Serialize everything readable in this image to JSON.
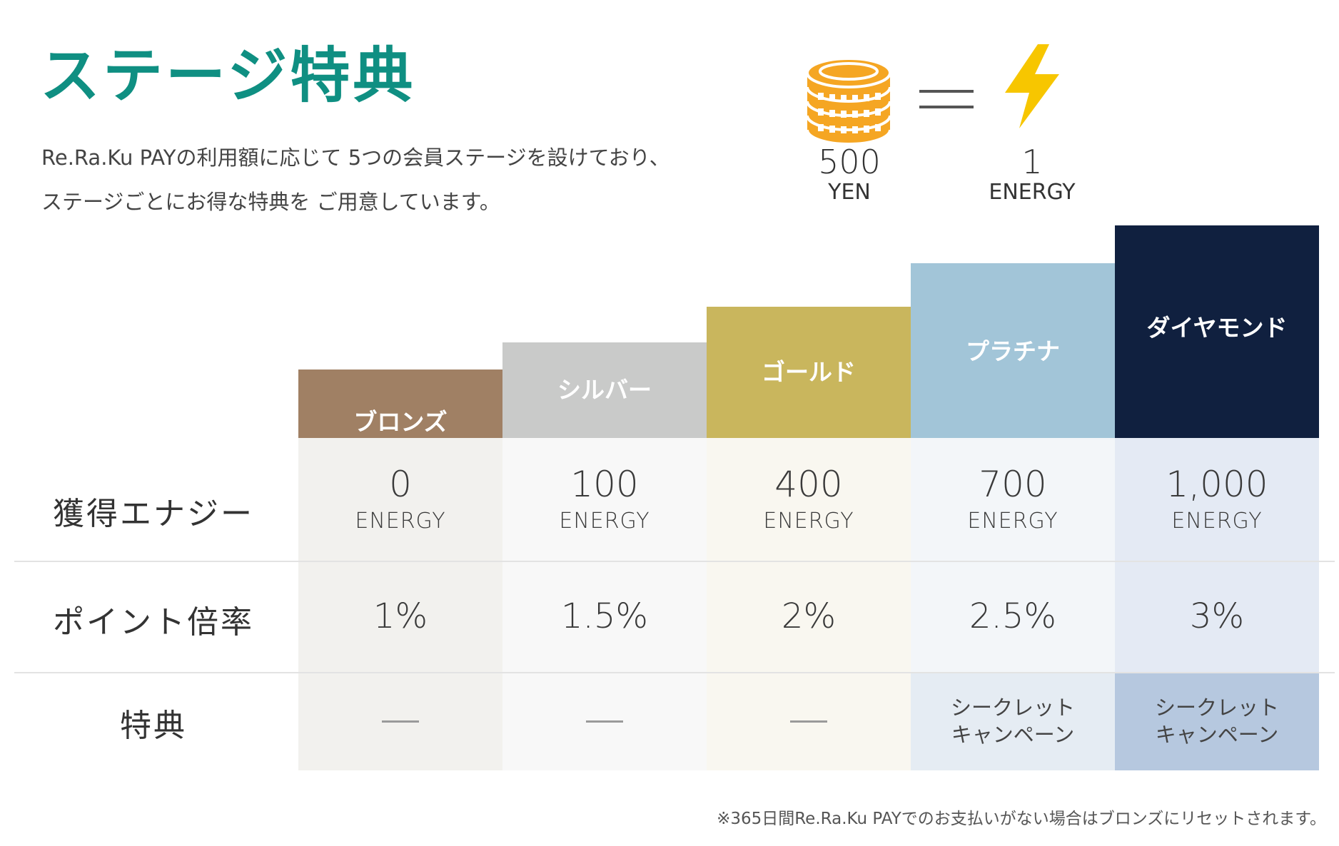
{
  "title": "ステージ特典",
  "intro": {
    "line1": "Re.Ra.Ku PAYの利用額に応じて 5つの会員ステージを設けており、",
    "line2": "ステージごとにお得な特典を ご用意しています。"
  },
  "conversion": {
    "yen_amount": "500",
    "yen_unit": "YEN",
    "energy_amount": "1",
    "energy_unit": "ENERGY"
  },
  "row_labels": {
    "energy": "獲得エナジー",
    "point_rate": "ポイント倍率",
    "perk": "特典"
  },
  "stages": [
    {
      "name": "ブロンズ",
      "energy": "0",
      "energy_unit": "ENERGY",
      "point_rate": "1%",
      "perk": "",
      "header_color": "#a08064",
      "body_color": "#f2f1ee"
    },
    {
      "name": "シルバー",
      "energy": "100",
      "energy_unit": "ENERGY",
      "point_rate": "1.5%",
      "perk": "",
      "header_color": "#c9cac9",
      "body_color": "#f8f8f8"
    },
    {
      "name": "ゴールド",
      "energy": "400",
      "energy_unit": "ENERGY",
      "point_rate": "2%",
      "perk": "",
      "header_color": "#c9b65d",
      "body_color": "#f9f7f0"
    },
    {
      "name": "プラチナ",
      "energy": "700",
      "energy_unit": "ENERGY",
      "point_rate": "2.5%",
      "perk_line1": "シークレット",
      "perk_line2": "キャンペーン",
      "header_color": "#a2c5d8",
      "body_color": "#f3f6f9",
      "perk_color": "#e5ecf3"
    },
    {
      "name": "ダイヤモンド",
      "energy": "1,000",
      "energy_unit": "ENERGY",
      "point_rate": "3%",
      "perk_line1": "シークレット",
      "perk_line2": "キャンペーン",
      "header_color": "#10203f",
      "body_color": "#e4eaf4",
      "perk_color": "#b6c8df"
    }
  ],
  "footnote": "※365日間Re.Ra.Ku PAYでのお支払いがない場合はブロンズにリセットされます。",
  "colors": {
    "accent": "#0f8f82",
    "coin": "#f5a623",
    "bolt": "#f7c600"
  }
}
